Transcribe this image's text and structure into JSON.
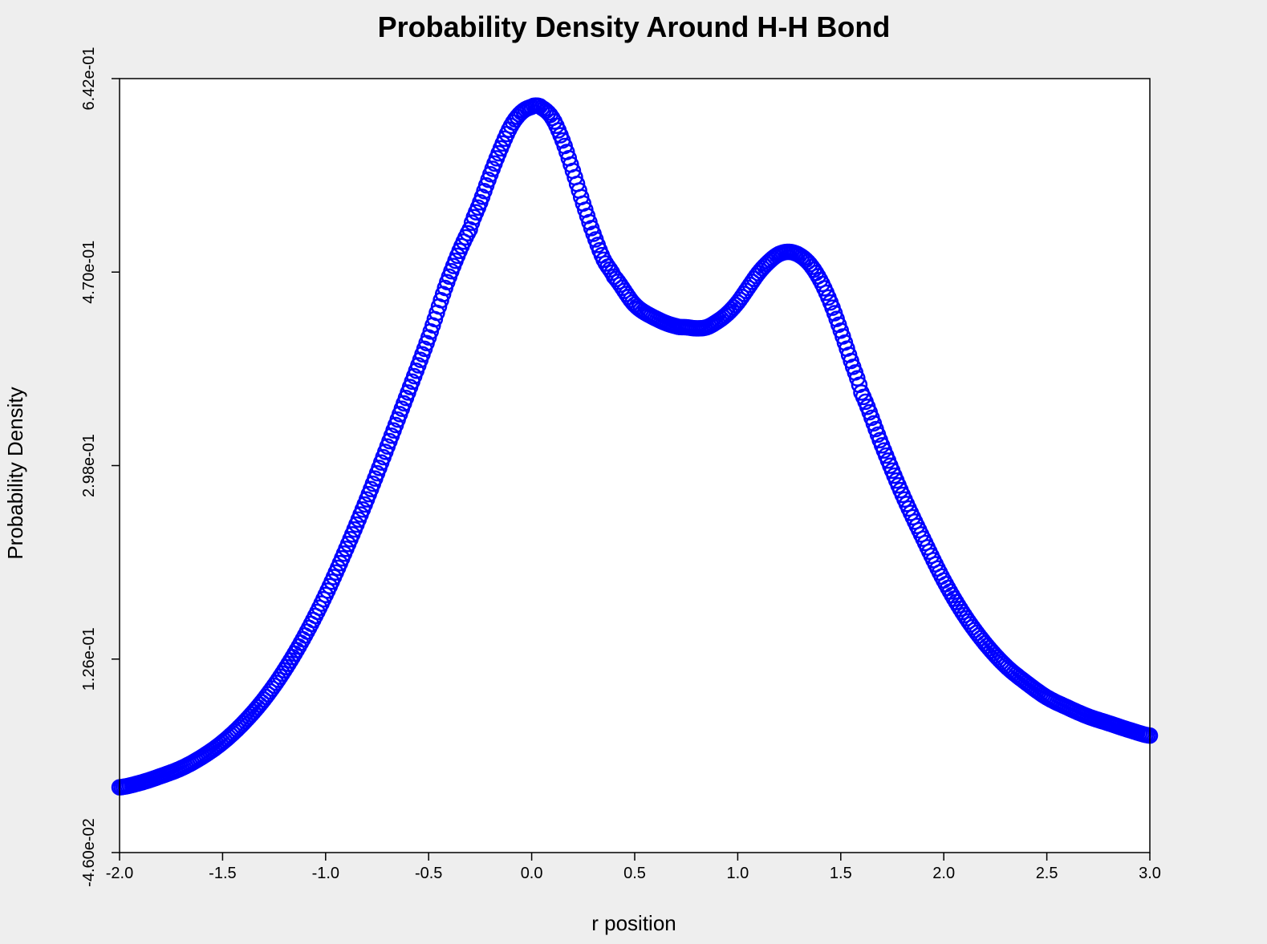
{
  "chart_data": {
    "type": "scatter",
    "title": "Probability Density Around H-H Bond",
    "xlabel": "r position",
    "ylabel": "Probability Density",
    "xlim": [
      -2.0,
      3.0
    ],
    "ylim": [
      -0.046,
      0.642
    ],
    "x_ticks": [
      {
        "value": -2.0,
        "label": "-2.0"
      },
      {
        "value": -1.5,
        "label": "-1.5"
      },
      {
        "value": -1.0,
        "label": "-1.0"
      },
      {
        "value": -0.5,
        "label": "-0.5"
      },
      {
        "value": 0.0,
        "label": "0.0"
      },
      {
        "value": 0.5,
        "label": "0.5"
      },
      {
        "value": 1.0,
        "label": "1.0"
      },
      {
        "value": 1.5,
        "label": "1.5"
      },
      {
        "value": 2.0,
        "label": "2.0"
      },
      {
        "value": 2.5,
        "label": "2.5"
      },
      {
        "value": 3.0,
        "label": "3.0"
      }
    ],
    "y_ticks": [
      {
        "value": -0.046,
        "label": "-4.60e-02"
      },
      {
        "value": 0.126,
        "label": "1.26e-01"
      },
      {
        "value": 0.298,
        "label": "2.98e-01"
      },
      {
        "value": 0.47,
        "label": "4.70e-01"
      },
      {
        "value": 0.642,
        "label": "6.42e-01"
      }
    ],
    "grid": false,
    "legend": "none",
    "marker": "open-circle",
    "series_color": "#0000ff",
    "series": [
      {
        "x": [
          -2.0,
          -1.9,
          -1.8,
          -1.7,
          -1.6,
          -1.5,
          -1.4,
          -1.3,
          -1.2,
          -1.1,
          -1.0,
          -0.9,
          -0.8,
          -0.7,
          -0.6,
          -0.5,
          -0.4,
          -0.3,
          -0.25,
          -0.2,
          -0.15,
          -0.1,
          -0.05,
          0.0,
          0.025,
          0.05,
          0.1,
          0.15,
          0.2,
          0.25,
          0.3,
          0.35,
          0.4,
          0.5,
          0.6,
          0.7,
          0.75,
          0.8,
          0.85,
          0.9,
          0.95,
          1.0,
          1.05,
          1.1,
          1.15,
          1.2,
          1.25,
          1.3,
          1.35,
          1.4,
          1.45,
          1.5,
          1.55,
          1.6,
          1.7,
          1.8,
          1.9,
          2.0,
          2.1,
          2.2,
          2.3,
          2.4,
          2.5,
          2.6,
          2.7,
          2.8,
          2.9,
          3.0
        ],
        "y": [
          0.012,
          0.016,
          0.022,
          0.029,
          0.039,
          0.052,
          0.069,
          0.09,
          0.116,
          0.147,
          0.183,
          0.224,
          0.268,
          0.315,
          0.363,
          0.412,
          0.466,
          0.508,
          0.532,
          0.557,
          0.58,
          0.6,
          0.612,
          0.617,
          0.618,
          0.616,
          0.607,
          0.587,
          0.56,
          0.531,
          0.504,
          0.481,
          0.466,
          0.441,
          0.429,
          0.422,
          0.421,
          0.42,
          0.421,
          0.426,
          0.433,
          0.443,
          0.456,
          0.469,
          0.479,
          0.486,
          0.488,
          0.485,
          0.477,
          0.463,
          0.443,
          0.418,
          0.391,
          0.363,
          0.316,
          0.272,
          0.233,
          0.196,
          0.165,
          0.14,
          0.12,
          0.105,
          0.092,
          0.083,
          0.075,
          0.069,
          0.063,
          0.058
        ]
      }
    ]
  }
}
